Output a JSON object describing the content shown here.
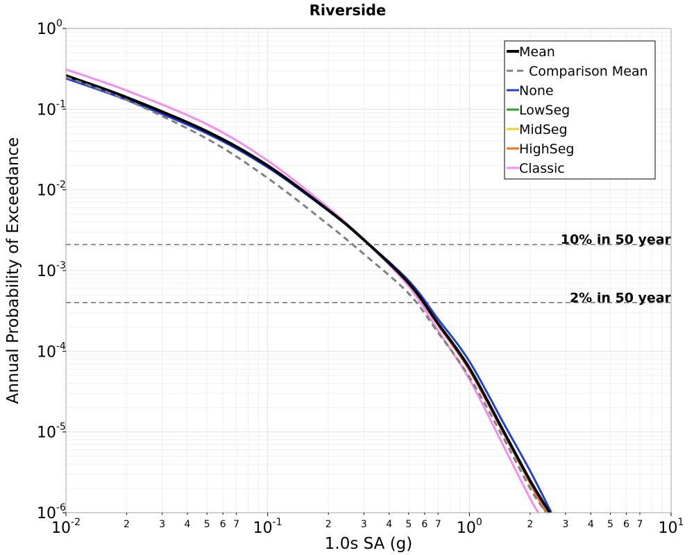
{
  "chart_data": {
    "type": "line",
    "title": "Riverside",
    "xlabel": "1.0s SA (g)",
    "ylabel": "Annual Probability of Exceedance",
    "xscale": "log",
    "yscale": "log",
    "xlim": [
      0.01,
      10
    ],
    "ylim": [
      1e-06,
      1
    ],
    "grid": true,
    "legend_position": "top-right",
    "x_major_ticks": [
      {
        "value": 0.01,
        "base": "10",
        "exp": "-2"
      },
      {
        "value": 0.1,
        "base": "10",
        "exp": "-1"
      },
      {
        "value": 1,
        "base": "10",
        "exp": "0"
      },
      {
        "value": 10,
        "base": "10",
        "exp": "1"
      }
    ],
    "x_minor_tick_labels": [
      "2",
      "3",
      "4",
      "5",
      "6",
      "7"
    ],
    "y_major_ticks": [
      {
        "value": 1e-06,
        "base": "10",
        "exp": "-6"
      },
      {
        "value": 1e-05,
        "base": "10",
        "exp": "-5"
      },
      {
        "value": 0.0001,
        "base": "10",
        "exp": "-4"
      },
      {
        "value": 0.001,
        "base": "10",
        "exp": "-3"
      },
      {
        "value": 0.01,
        "base": "10",
        "exp": "-2"
      },
      {
        "value": 0.1,
        "base": "10",
        "exp": "-1"
      },
      {
        "value": 1,
        "base": "10",
        "exp": "0"
      }
    ],
    "reference_lines": [
      {
        "label": "10% in 50 year",
        "y": 0.0021
      },
      {
        "label": "2% in 50 year",
        "y": 0.0004
      }
    ],
    "series": [
      {
        "name": "None",
        "color": "#1f3fd6",
        "dash": false,
        "x": [
          0.01,
          0.02,
          0.05,
          0.1,
          0.2,
          0.3,
          0.5,
          0.7,
          1.0,
          1.5,
          2.0,
          2.55
        ],
        "y": [
          0.24,
          0.13,
          0.05,
          0.019,
          0.0055,
          0.0024,
          0.00075,
          0.00025,
          7.5e-05,
          1.2e-05,
          3.3e-06,
          1e-06
        ]
      },
      {
        "name": "LowSeg",
        "color": "#2ca02c",
        "dash": false,
        "x": [
          0.01,
          0.02,
          0.05,
          0.1,
          0.2,
          0.3,
          0.5,
          0.7,
          1.0,
          1.5,
          2.0,
          2.45
        ],
        "y": [
          0.26,
          0.14,
          0.053,
          0.02,
          0.0056,
          0.0024,
          0.00071,
          0.00022,
          6.2e-05,
          9.5e-06,
          2.5e-06,
          1e-06
        ]
      },
      {
        "name": "MidSeg",
        "color": "#f0d020",
        "dash": false,
        "x": [
          0.01,
          0.02,
          0.05,
          0.1,
          0.2,
          0.3,
          0.5,
          0.7,
          1.0,
          1.5,
          2.0,
          2.45
        ],
        "y": [
          0.26,
          0.14,
          0.053,
          0.02,
          0.0056,
          0.0024,
          0.0007,
          0.00022,
          6e-05,
          9.3e-06,
          2.4e-06,
          1e-06
        ]
      },
      {
        "name": "HighSeg",
        "color": "#f07020",
        "dash": false,
        "x": [
          0.01,
          0.02,
          0.05,
          0.1,
          0.2,
          0.3,
          0.5,
          0.7,
          1.0,
          1.5,
          2.0,
          2.4
        ],
        "y": [
          0.26,
          0.14,
          0.053,
          0.02,
          0.0056,
          0.0024,
          0.00069,
          0.00021,
          5.8e-05,
          9e-06,
          2.3e-06,
          1e-06
        ]
      },
      {
        "name": "Classic",
        "color": "#f58cf0",
        "dash": false,
        "x": [
          0.01,
          0.02,
          0.05,
          0.1,
          0.2,
          0.3,
          0.5,
          0.7,
          1.0,
          1.5,
          2.0,
          2.2
        ],
        "y": [
          0.31,
          0.17,
          0.065,
          0.023,
          0.006,
          0.0024,
          0.00064,
          0.00018,
          4.5e-05,
          6.2e-06,
          1.5e-06,
          1e-06
        ]
      },
      {
        "name": "Mean",
        "color": "#000000",
        "dash": false,
        "width": 4,
        "x": [
          0.01,
          0.02,
          0.05,
          0.1,
          0.2,
          0.3,
          0.5,
          0.7,
          1.0,
          1.5,
          2.0,
          2.5
        ],
        "y": [
          0.26,
          0.14,
          0.053,
          0.02,
          0.0056,
          0.0024,
          0.0007,
          0.00022,
          6.2e-05,
          9.5e-06,
          2.5e-06,
          1e-06
        ]
      },
      {
        "name": "Comparison Mean",
        "color": "#808080",
        "dash": true,
        "x": [
          0.01,
          0.02,
          0.05,
          0.1,
          0.2,
          0.3,
          0.5,
          0.7,
          1.0,
          1.5,
          2.0,
          2.4
        ],
        "y": [
          0.25,
          0.13,
          0.043,
          0.014,
          0.0037,
          0.0016,
          0.00052,
          0.00017,
          4.8e-05,
          7.8e-06,
          2e-06,
          1e-06
        ]
      }
    ],
    "legend_order": [
      "Mean",
      "Comparison Mean",
      "None",
      "LowSeg",
      "MidSeg",
      "HighSeg",
      "Classic"
    ]
  }
}
